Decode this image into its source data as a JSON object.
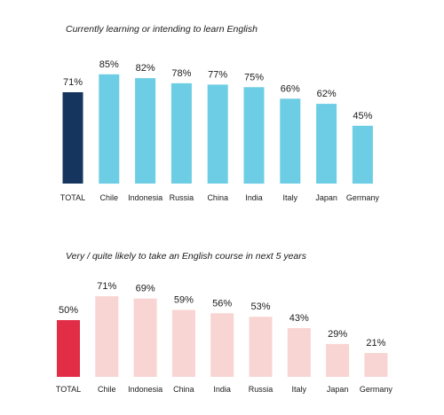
{
  "chart_data": [
    {
      "type": "bar",
      "title": "Currently learning or intending to learn English",
      "categories": [
        "TOTAL",
        "Chile",
        "Indonesia",
        "Russia",
        "China",
        "India",
        "Italy",
        "Japan",
        "Germany"
      ],
      "values": [
        71,
        85,
        82,
        78,
        77,
        75,
        66,
        62,
        45
      ],
      "value_labels": [
        "71%",
        "85%",
        "82%",
        "78%",
        "77%",
        "75%",
        "66%",
        "62%",
        "45%"
      ],
      "ylim": [
        0,
        100
      ],
      "grid": false,
      "legend": "none",
      "colors": {
        "highlight": "#16355e",
        "bars": "#6dcde4"
      }
    },
    {
      "type": "bar",
      "title": "Very / quite likely to take an English course in next 5 years",
      "categories": [
        "TOTAL",
        "Chile",
        "Indonesia",
        "China",
        "India",
        "Russia",
        "Italy",
        "Japan",
        "Germany"
      ],
      "values": [
        50,
        71,
        69,
        59,
        56,
        53,
        43,
        29,
        21
      ],
      "value_labels": [
        "50%",
        "71%",
        "69%",
        "59%",
        "56%",
        "53%",
        "43%",
        "29%",
        "21%"
      ],
      "ylim": [
        0,
        100
      ],
      "grid": false,
      "legend": "none",
      "colors": {
        "highlight": "#e22d46",
        "bars": "#f8d4d2"
      }
    }
  ]
}
